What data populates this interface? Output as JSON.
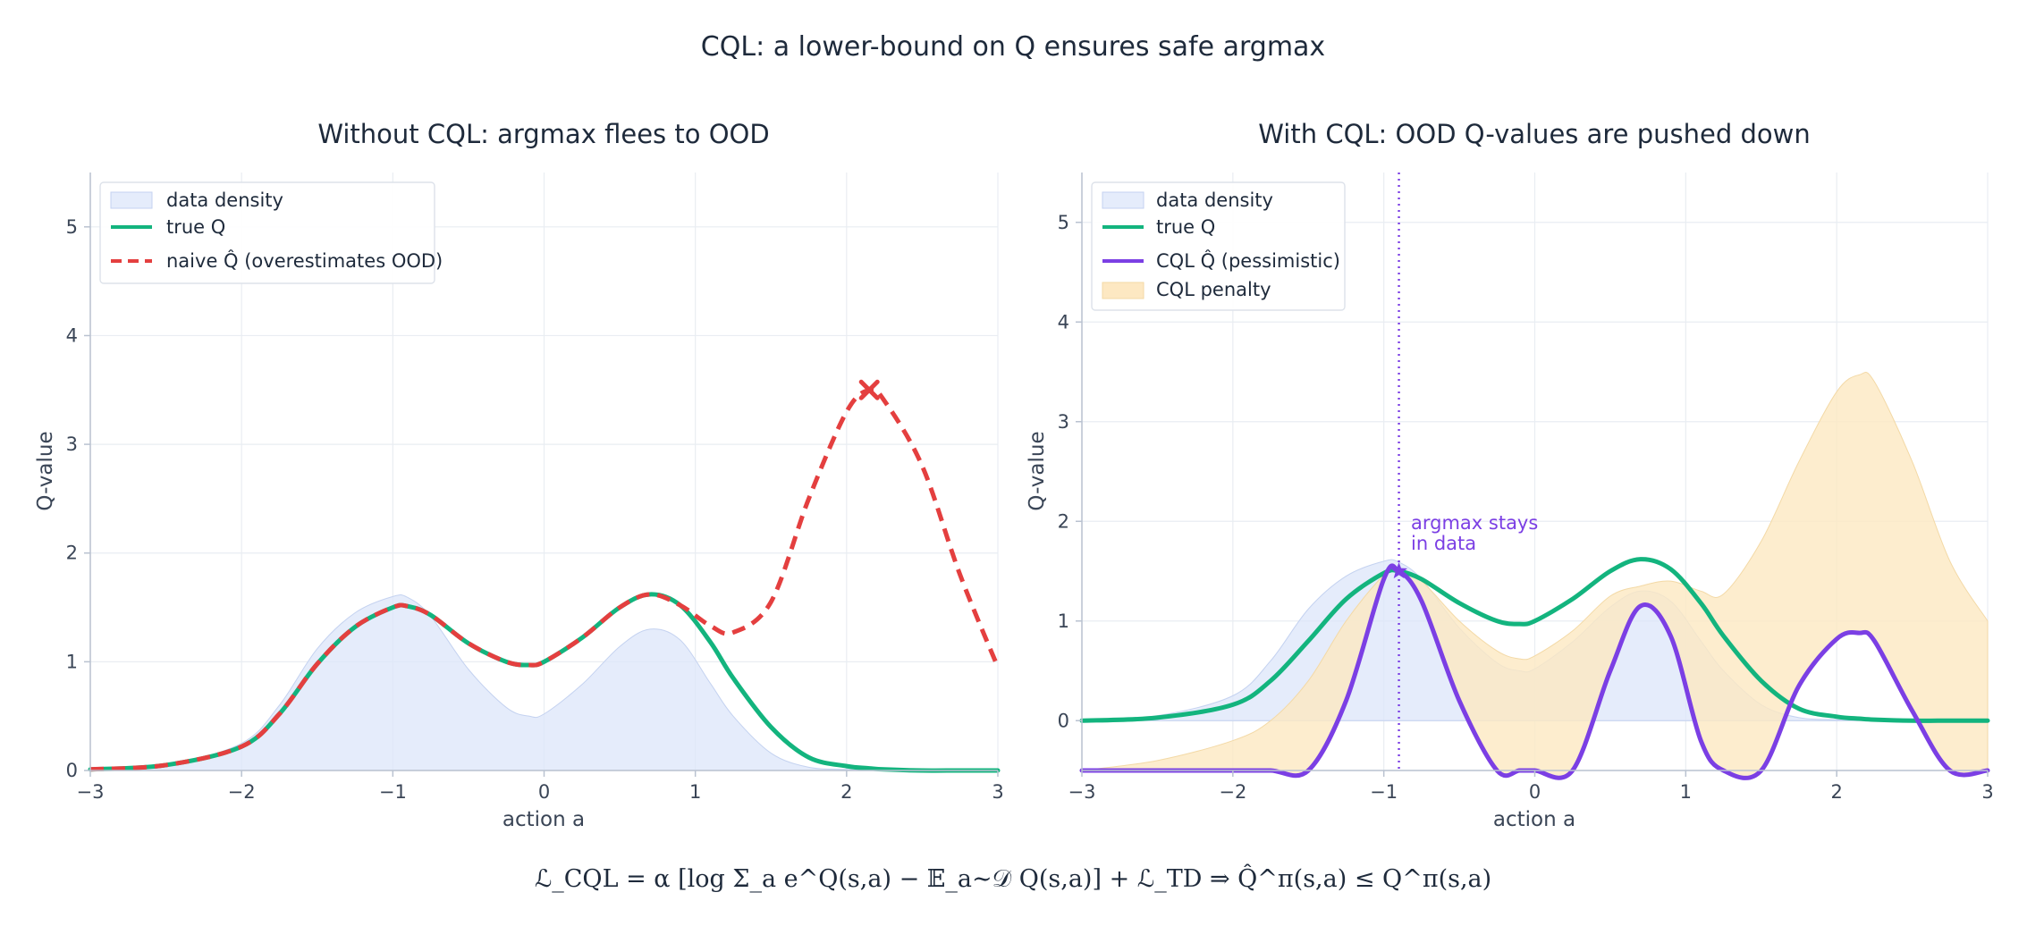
{
  "figure": {
    "title": "CQL: a lower-bound on Q ensures safe argmax",
    "formula": "ℒ_CQL = α [log Σ_a e^Q(s,a) − 𝔼_a∼𝒟 Q(s,a)] + ℒ_TD ⇒ Q̂^π(s,a) ≤ Q^π(s,a)",
    "colors": {
      "density": "#dce6fa",
      "true_q": "#13b47e",
      "naive_q": "#e43f3f",
      "cql_q": "#7b3fe4",
      "penalty": "#fde8c2"
    }
  },
  "chart_data": [
    {
      "type": "line",
      "title": "Without CQL: argmax flees to OOD",
      "xlabel": "action a",
      "ylabel": "Q-value",
      "xlim": [
        -3,
        3
      ],
      "ylim": [
        0,
        5.5
      ],
      "xticks": [
        -3,
        -2,
        -1,
        0,
        1,
        2,
        3
      ],
      "yticks": [
        0,
        1,
        2,
        3,
        4,
        5
      ],
      "grid": true,
      "legend_position": "top-left",
      "x": [
        -3,
        -2.5,
        -2,
        -1.75,
        -1.5,
        -1.25,
        -1,
        -0.9,
        -0.75,
        -0.5,
        -0.25,
        -0.1,
        0,
        0.25,
        0.5,
        0.7,
        0.9,
        1.1,
        1.25,
        1.5,
        1.75,
        2,
        2.15,
        2.25,
        2.5,
        2.75,
        3
      ],
      "series": [
        {
          "name": "data density",
          "style": "area",
          "values": [
            0.01,
            0.05,
            0.25,
            0.6,
            1.12,
            1.45,
            1.6,
            1.59,
            1.42,
            0.93,
            0.58,
            0.5,
            0.52,
            0.79,
            1.14,
            1.3,
            1.2,
            0.8,
            0.5,
            0.16,
            0.03,
            0.01,
            0,
            0,
            0,
            0,
            0
          ]
        },
        {
          "name": "true Q",
          "style": "solid",
          "values": [
            0.01,
            0.05,
            0.22,
            0.52,
            0.98,
            1.32,
            1.5,
            1.51,
            1.43,
            1.17,
            1.0,
            0.97,
            1.0,
            1.22,
            1.5,
            1.62,
            1.52,
            1.18,
            0.85,
            0.4,
            0.12,
            0.04,
            0.02,
            0.01,
            0,
            0,
            0
          ]
        },
        {
          "name": "naive Q̂ (overestimates OOD)",
          "style": "dashed",
          "values": [
            0.01,
            0.05,
            0.22,
            0.52,
            0.98,
            1.32,
            1.5,
            1.51,
            1.43,
            1.17,
            1.0,
            0.97,
            1.0,
            1.22,
            1.5,
            1.62,
            1.52,
            1.33,
            1.27,
            1.55,
            2.5,
            3.3,
            3.5,
            3.4,
            2.8,
            1.8,
            0.95
          ]
        }
      ],
      "marker": {
        "shape": "x",
        "x": 2.15,
        "y": 3.5
      }
    },
    {
      "type": "line",
      "title": "With CQL: OOD Q-values are pushed down",
      "xlabel": "action a",
      "ylabel": "Q-value",
      "xlim": [
        -3,
        3
      ],
      "ylim": [
        -0.5,
        5.5
      ],
      "xticks": [
        -3,
        -2,
        -1,
        0,
        1,
        2,
        3
      ],
      "yticks": [
        0,
        1,
        2,
        3,
        4,
        5
      ],
      "grid": true,
      "legend_position": "top-left",
      "x": [
        -3,
        -2.5,
        -2,
        -1.75,
        -1.5,
        -1.25,
        -1,
        -0.9,
        -0.75,
        -0.5,
        -0.25,
        -0.1,
        0,
        0.25,
        0.5,
        0.7,
        0.9,
        1.1,
        1.25,
        1.5,
        1.75,
        2,
        2.15,
        2.25,
        2.5,
        2.75,
        3
      ],
      "series": [
        {
          "name": "data density",
          "style": "area",
          "values": [
            0.01,
            0.05,
            0.25,
            0.6,
            1.12,
            1.45,
            1.6,
            1.59,
            1.42,
            0.93,
            0.58,
            0.5,
            0.52,
            0.79,
            1.14,
            1.3,
            1.2,
            0.8,
            0.5,
            0.16,
            0.03,
            0.01,
            0,
            0,
            0,
            0,
            0
          ]
        },
        {
          "name": "true Q",
          "style": "solid",
          "values": [
            0.0,
            0.03,
            0.16,
            0.4,
            0.8,
            1.22,
            1.48,
            1.5,
            1.42,
            1.18,
            1.0,
            0.97,
            1.0,
            1.22,
            1.5,
            1.62,
            1.52,
            1.18,
            0.85,
            0.4,
            0.12,
            0.04,
            0.02,
            0.01,
            0,
            0,
            0
          ]
        },
        {
          "name": "CQL Q̂ (pessimistic)",
          "style": "solid",
          "values": [
            -0.5,
            -0.5,
            -0.5,
            -0.5,
            -0.5,
            0.2,
            1.42,
            1.5,
            1.2,
            0.2,
            -0.5,
            -0.5,
            -0.5,
            -0.5,
            0.5,
            1.15,
            0.85,
            -0.2,
            -0.5,
            -0.5,
            0.35,
            0.82,
            0.88,
            0.8,
            0.1,
            -0.5,
            -0.5
          ]
        },
        {
          "name": "CQL penalty",
          "style": "band",
          "upper": [
            -0.5,
            -0.4,
            -0.2,
            0.0,
            0.4,
            1.0,
            1.46,
            1.5,
            1.4,
            1.0,
            0.7,
            0.62,
            0.65,
            0.9,
            1.25,
            1.35,
            1.4,
            1.3,
            1.27,
            1.8,
            2.6,
            3.3,
            3.47,
            3.4,
            2.6,
            1.6,
            1.0
          ],
          "lower": [
            -0.5,
            -0.5,
            -0.5,
            -0.5,
            -0.5,
            0.2,
            1.42,
            1.5,
            1.2,
            0.2,
            -0.5,
            -0.5,
            -0.5,
            -0.5,
            0.5,
            1.15,
            0.85,
            -0.2,
            -0.5,
            -0.5,
            0.35,
            0.82,
            0.88,
            0.8,
            0.1,
            -0.5,
            -0.5
          ]
        }
      ],
      "argmax": {
        "x": -0.9,
        "y": 1.5
      },
      "annotation": {
        "line1": "argmax stays",
        "line2": "in data"
      }
    }
  ]
}
